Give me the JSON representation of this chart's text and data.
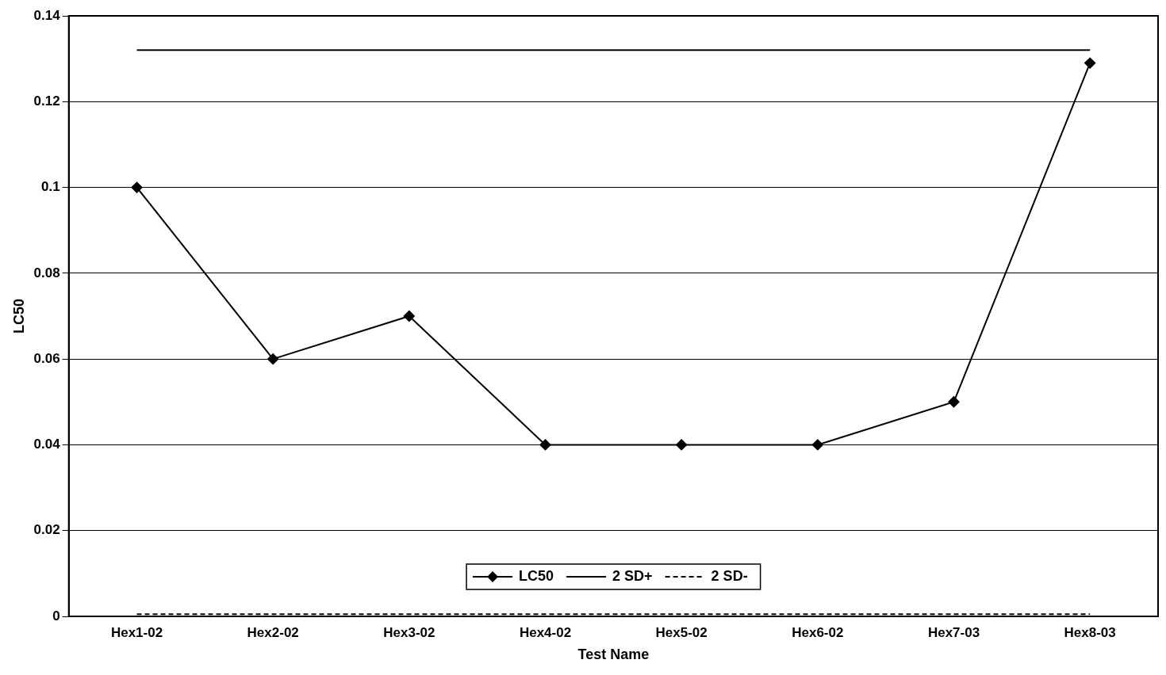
{
  "chart_data": {
    "type": "line",
    "xlabel": "Test Name",
    "ylabel": "LC50",
    "categories": [
      "Hex1-02",
      "Hex2-02",
      "Hex3-02",
      "Hex4-02",
      "Hex5-02",
      "Hex6-02",
      "Hex7-03",
      "Hex8-03"
    ],
    "series": [
      {
        "name": "LC50",
        "color": "#000000",
        "marker": "diamond",
        "line_style": "solid",
        "values": [
          0.1,
          0.06,
          0.07,
          0.04,
          0.04,
          0.04,
          0.05,
          0.129
        ]
      },
      {
        "name": "2 SD+",
        "color": "#000000",
        "marker": "none",
        "line_style": "solid",
        "values": [
          0.132,
          0.132,
          0.132,
          0.132,
          0.132,
          0.132,
          0.132,
          0.132
        ]
      },
      {
        "name": "2 SD-",
        "color": "#000000",
        "marker": "none",
        "line_style": "dashed",
        "values": [
          0.0005,
          0.0005,
          0.0005,
          0.0005,
          0.0005,
          0.0005,
          0.0005,
          0.0005
        ]
      }
    ],
    "ylim": [
      0,
      0.14
    ],
    "yticks": [
      0,
      0.02,
      0.04,
      0.06,
      0.08,
      0.1,
      0.12,
      0.14
    ],
    "grid": "y",
    "legend": "bottom"
  }
}
